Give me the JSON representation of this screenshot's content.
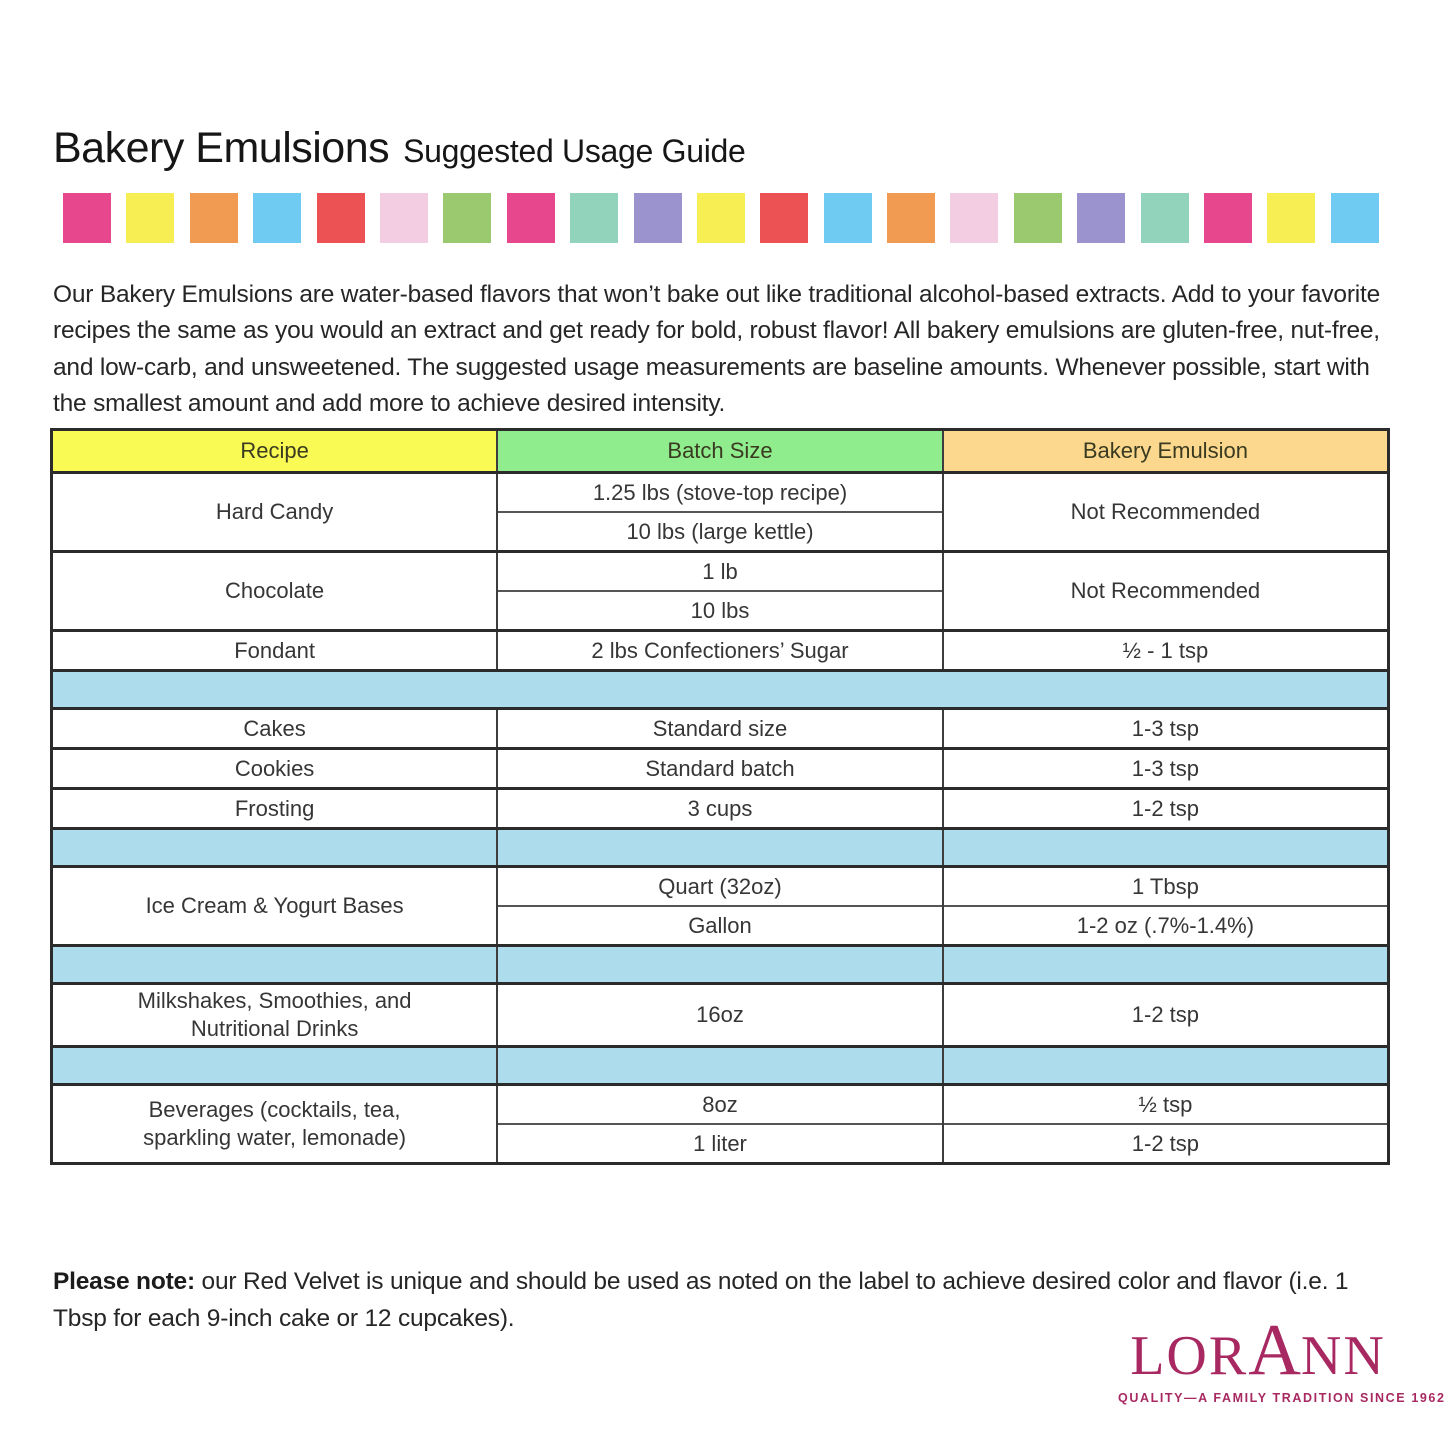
{
  "header": {
    "title_main": "Bakery Emulsions",
    "title_sub": "Suggested Usage Guide"
  },
  "color_strip": {
    "swatches": [
      "#e7478d",
      "#f6ee52",
      "#f09a52",
      "#70cbf3",
      "#ec5253",
      "#f3cee3",
      "#9bc96f",
      "#e7478d",
      "#92d4bb",
      "#9a93ce",
      "#f6ee52",
      "#ec5253",
      "#70cbf3",
      "#f09a52",
      "#f3cee3",
      "#9bc96f",
      "#9a93ce",
      "#92d4bb",
      "#e7478d",
      "#f6ee52",
      "#70cbf3"
    ]
  },
  "intro": {
    "text": "Our Bakery Emulsions are water-based flavors that won’t bake out like traditional alcohol-based extracts. Add to your favorite recipes the same as you would an extract and get ready for bold, robust flavor! All bakery emulsions are gluten-free, nut-free, and low-carb, and unsweetened. The suggested usage measurements are baseline amounts. Whenever possible, start with the smallest amount and add more to achieve desired intensity."
  },
  "table": {
    "headers": {
      "recipe": "Recipe",
      "batch_size": "Batch Size",
      "emulsion": "Bakery Emulsion"
    },
    "header_colors": {
      "recipe": "#fafa55",
      "batch_size": "#8fed8d",
      "emulsion": "#fbd88e"
    },
    "separator_row_color": "#addcec",
    "hard_candy": {
      "recipe": "Hard Candy",
      "batch_1": "1.25 lbs (stove-top recipe)",
      "batch_2": "10 lbs (large kettle)",
      "emulsion": "Not Recommended"
    },
    "chocolate": {
      "recipe": "Chocolate",
      "batch_1": "1 lb",
      "batch_2": "10 lbs",
      "emulsion": "Not Recommended"
    },
    "fondant": {
      "recipe": "Fondant",
      "batch": "2 lbs Confectioners’ Sugar",
      "emulsion": "½ - 1 tsp"
    },
    "cakes": {
      "recipe": "Cakes",
      "batch": "Standard size",
      "emulsion": "1-3 tsp"
    },
    "cookies": {
      "recipe": "Cookies",
      "batch": "Standard batch",
      "emulsion": "1-3 tsp"
    },
    "frosting": {
      "recipe": "Frosting",
      "batch": "3 cups",
      "emulsion": "1-2 tsp"
    },
    "ice_cream": {
      "recipe": "Ice Cream & Yogurt Bases",
      "batch_1": "Quart (32oz)",
      "emulsion_1": "1 Tbsp",
      "batch_2": "Gallon",
      "emulsion_2": "1-2 oz (.7%-1.4%)"
    },
    "milkshakes": {
      "recipe_line1": "Milkshakes, Smoothies, and",
      "recipe_line2": "Nutritional Drinks",
      "batch": "16oz",
      "emulsion": "1-2 tsp"
    },
    "beverages": {
      "recipe_line1": "Beverages (cocktails, tea,",
      "recipe_line2": "sparkling water, lemonade)",
      "batch_1": "8oz",
      "emulsion_1": "½ tsp",
      "batch_2": "1 liter",
      "emulsion_2": "1-2 tsp"
    }
  },
  "note": {
    "label": "Please note:",
    "text": " our Red Velvet is unique and should be used as noted on the label to achieve desired color and flavor (i.e. 1 Tbsp for each 9-inch cake or 12 cupcakes)."
  },
  "logo": {
    "wordmark_left": "LOR",
    "wordmark_a": "A",
    "wordmark_right": "NN",
    "tagline": "QUALITY—A FAMILY TRADITION SINCE 1962",
    "color": "#a82961"
  }
}
